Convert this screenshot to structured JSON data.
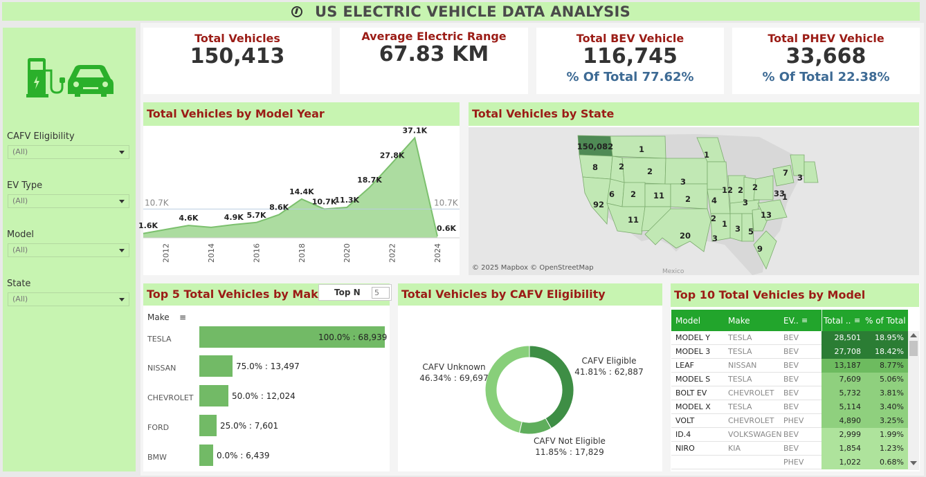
{
  "title": "US ELECTRIC VEHICLE DATA ANALYSIS",
  "colors": {
    "accent_bg": "#c7f4b1",
    "title_red": "#9b1c16",
    "pct_blue": "#3d6a94",
    "bar_green": "#72ba66",
    "header_green": "#22a52c"
  },
  "filters": [
    {
      "label": "CAFV Eligibility",
      "value": "(All)"
    },
    {
      "label": "EV Type",
      "value": "(All)"
    },
    {
      "label": "Model",
      "value": "(All)"
    },
    {
      "label": "State",
      "value": "(All)"
    }
  ],
  "kpis": {
    "total_vehicles": {
      "label": "Total Vehicles",
      "value": "150,413"
    },
    "avg_range": {
      "label": "Average Electric Range",
      "value": "67.83 KM"
    },
    "bev": {
      "label": "Total BEV Vehicle",
      "value": "116,745",
      "sub": "% Of Total 77.62%"
    },
    "phev": {
      "label": "Total PHEV Vehicle",
      "value": "33,668",
      "sub": "% Of Total 22.38%"
    }
  },
  "model_year_chart": {
    "title": "Total Vehicles by Model Year",
    "reference_label": "10.7K",
    "x_ticks": [
      "2012",
      "2014",
      "2016",
      "2018",
      "2020",
      "2022",
      "2024"
    ]
  },
  "map": {
    "title": "Total Vehicles by State",
    "attribution": "© 2025 Mapbox © OpenStreetMap",
    "country_label": "Mexico"
  },
  "make_chart": {
    "title": "Top 5 Total Vehicles by Make",
    "header": "Make",
    "top_n_label": "Top N",
    "top_n_value": "5"
  },
  "cafv_chart": {
    "title": "Total Vehicles by CAFV Eligibility",
    "labels": [
      {
        "name": "CAFV Eligible",
        "detail": "41.81% : 62,887"
      },
      {
        "name": "CAFV Unknown",
        "detail": "46.34% : 69,697"
      },
      {
        "name": "CAFV Not Eligible",
        "detail": "11.85% : 17,829"
      }
    ]
  },
  "model_table": {
    "title": "Top 10 Total Vehicles by Model",
    "columns": [
      "Model",
      "Make",
      "EV..",
      "Total ..",
      "% of Total"
    ],
    "rows": [
      {
        "model": "MODEL Y",
        "make": "TESLA",
        "ev": "BEV",
        "total": "28,501",
        "pct": "18.95%",
        "shade": 1.0
      },
      {
        "model": "MODEL 3",
        "make": "TESLA",
        "ev": "BEV",
        "total": "27,708",
        "pct": "18.42%",
        "shade": 0.97
      },
      {
        "model": "LEAF",
        "make": "NISSAN",
        "ev": "BEV",
        "total": "13,187",
        "pct": "8.77%",
        "shade": 0.46
      },
      {
        "model": "MODEL S",
        "make": "TESLA",
        "ev": "BEV",
        "total": "7,609",
        "pct": "5.06%",
        "shade": 0.27
      },
      {
        "model": "BOLT EV",
        "make": "CHEVROLET",
        "ev": "BEV",
        "total": "5,732",
        "pct": "3.81%",
        "shade": 0.2
      },
      {
        "model": "MODEL X",
        "make": "TESLA",
        "ev": "BEV",
        "total": "5,114",
        "pct": "3.40%",
        "shade": 0.18
      },
      {
        "model": "VOLT",
        "make": "CHEVROLET",
        "ev": "PHEV",
        "total": "4,890",
        "pct": "3.25%",
        "shade": 0.17
      },
      {
        "model": "ID.4",
        "make": "VOLKSWAGEN",
        "ev": "BEV",
        "total": "2,999",
        "pct": "1.99%",
        "shade": 0.1
      },
      {
        "model": "NIRO",
        "make": "KIA",
        "ev": "BEV",
        "total": "1,854",
        "pct": "1.23%",
        "shade": 0.06
      },
      {
        "model": "",
        "make": "",
        "ev": "PHEV",
        "total": "1,022",
        "pct": "0.68%",
        "shade": 0.03
      }
    ]
  },
  "chart_data": [
    {
      "type": "area",
      "title": "Total Vehicles by Model Year",
      "x": [
        2011,
        2013,
        2014,
        2015,
        2016,
        2017,
        2018,
        2019,
        2020,
        2021,
        2022,
        2023,
        2024
      ],
      "values": [
        1.6,
        4.6,
        3.9,
        4.9,
        5.7,
        8.6,
        14.4,
        10.7,
        11.3,
        18.7,
        27.8,
        37.1,
        0.6
      ],
      "data_labels": [
        "1.6K",
        "4.6K",
        "",
        "4.9K",
        "5.7K",
        "8.6K",
        "14.4K",
        "10.7K",
        "11.3K",
        "18.7K",
        "27.8K",
        "37.1K",
        "0.6K"
      ],
      "reference_line": 10.7,
      "ylim": [
        0,
        38
      ]
    },
    {
      "type": "bar",
      "title": "Top 5 Total Vehicles by Make",
      "categories": [
        "TESLA",
        "NISSAN",
        "CHEVROLET",
        "FORD",
        "BMW"
      ],
      "values": [
        68939,
        13497,
        12024,
        7601,
        6439
      ],
      "labels": [
        "100.0% : 68,939",
        "75.0% : 13,497",
        "50.0% : 12,024",
        "25.0% : 7,601",
        "0.0% : 6,439"
      ]
    },
    {
      "type": "pie",
      "title": "Total Vehicles by CAFV Eligibility",
      "categories": [
        "CAFV Eligible",
        "CAFV Not Eligible",
        "CAFV Unknown"
      ],
      "values": [
        62887,
        17829,
        69697
      ],
      "percent": [
        41.81,
        11.85,
        46.34
      ],
      "colors": [
        "#3e8e45",
        "#5fae5c",
        "#88cf7a"
      ]
    },
    {
      "type": "heatmap",
      "title": "Total Vehicles by State",
      "labels": [
        "150,082",
        "8",
        "1",
        "2",
        "1",
        "2",
        "92",
        "6",
        "2",
        "11",
        "3",
        "2",
        "11",
        "20",
        "4",
        "12",
        "2",
        "2",
        "7",
        "3",
        "33",
        "1",
        "3",
        "2",
        "1",
        "3",
        "5",
        "13",
        "9",
        "3"
      ]
    }
  ]
}
